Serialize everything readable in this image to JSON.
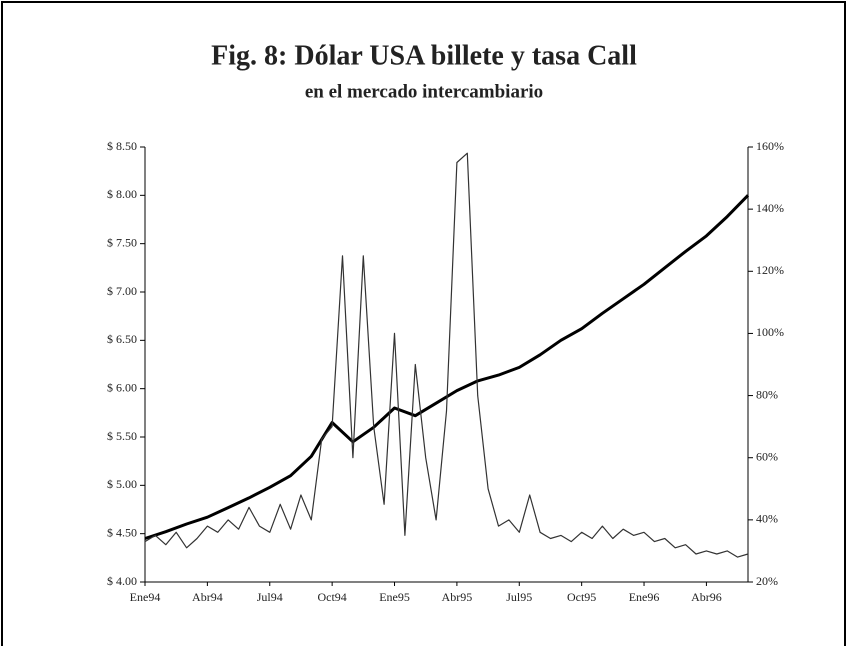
{
  "chart_data": {
    "type": "line",
    "title": "Fig. 8: Dólar USA billete y tasa Call",
    "subtitle": "en el mercado intercambiario",
    "xlim": [
      0,
      29
    ],
    "xticks": [
      {
        "value": 0,
        "label": "Ene94"
      },
      {
        "value": 3,
        "label": "Abr94"
      },
      {
        "value": 6,
        "label": "Jul94"
      },
      {
        "value": 9,
        "label": "Oct94"
      },
      {
        "value": 12,
        "label": "Ene95"
      },
      {
        "value": 15,
        "label": "Abr95"
      },
      {
        "value": 18,
        "label": "Jul95"
      },
      {
        "value": 21,
        "label": "Oct95"
      },
      {
        "value": 24,
        "label": "Ene96"
      },
      {
        "value": 27,
        "label": "Abr96"
      }
    ],
    "ylim": [
      4,
      8.5
    ],
    "yticks": [
      {
        "value": 4,
        "label": "$ 4.00"
      },
      {
        "value": 4.5,
        "label": "$ 4.50"
      },
      {
        "value": 5,
        "label": "$ 5.00"
      },
      {
        "value": 5.5,
        "label": "$ 5.50"
      },
      {
        "value": 6,
        "label": "$ 6.00"
      },
      {
        "value": 6.5,
        "label": "$ 6.50"
      },
      {
        "value": 7,
        "label": "$ 7.00"
      },
      {
        "value": 7.5,
        "label": "$ 7.50"
      },
      {
        "value": 8,
        "label": "$ 8.00"
      },
      {
        "value": 8.5,
        "label": "$ 8.50"
      }
    ],
    "y2lim": [
      20,
      160
    ],
    "y2ticks": [
      {
        "value": 20,
        "label": "20%"
      },
      {
        "value": 40,
        "label": "40%"
      },
      {
        "value": 60,
        "label": "60%"
      },
      {
        "value": 80,
        "label": "80%"
      },
      {
        "value": 100,
        "label": "100%"
      },
      {
        "value": 120,
        "label": "120%"
      },
      {
        "value": 140,
        "label": "140%"
      },
      {
        "value": 160,
        "label": "160%"
      }
    ],
    "series": [
      {
        "color": "#000000",
        "width": 3,
        "x": [
          0,
          1,
          2,
          3,
          4,
          5,
          6,
          7,
          8,
          9,
          10,
          11,
          12,
          13,
          14,
          15,
          16,
          17,
          18,
          19,
          20,
          21,
          22,
          23,
          24,
          25,
          26,
          27,
          28,
          29
        ],
        "values": [
          4.45,
          4.52,
          4.6,
          4.67,
          4.77,
          4.87,
          4.98,
          5.1,
          5.3,
          5.65,
          5.45,
          5.6,
          5.8,
          5.72,
          5.85,
          5.98,
          6.08,
          6.14,
          6.22,
          6.35,
          6.5,
          6.62,
          6.78,
          6.93,
          7.08,
          7.25,
          7.42,
          7.58,
          7.78,
          8.0
        ]
      },
      {
        "color": "#333333",
        "width": 1.2,
        "axis": "y2",
        "x": [
          0,
          0.5,
          1,
          1.5,
          2,
          2.5,
          3,
          3.5,
          4,
          4.5,
          5,
          5.5,
          6,
          6.5,
          7,
          7.5,
          8,
          8.5,
          9,
          9.5,
          10,
          10.5,
          11,
          11.5,
          12,
          12.5,
          13,
          13.5,
          14,
          14.5,
          15,
          15.5,
          16,
          16.5,
          17,
          17.5,
          18,
          18.5,
          19,
          19.5,
          20,
          20.5,
          21,
          21.5,
          22,
          22.5,
          23,
          23.5,
          24,
          24.5,
          25,
          25.5,
          26,
          26.5,
          27,
          27.5,
          28,
          28.5,
          29
        ],
        "values": [
          33,
          35,
          32,
          36,
          31,
          34,
          38,
          36,
          40,
          37,
          44,
          38,
          36,
          45,
          37,
          48,
          40,
          66,
          70,
          125,
          60,
          125,
          70,
          45,
          100,
          35,
          90,
          60,
          40,
          75,
          155,
          158,
          80,
          50,
          38,
          40,
          36,
          48,
          36,
          34,
          35,
          33,
          36,
          34,
          38,
          34,
          37,
          35,
          36,
          33,
          34,
          31,
          32,
          29,
          30,
          29,
          30,
          28,
          29
        ]
      }
    ]
  }
}
